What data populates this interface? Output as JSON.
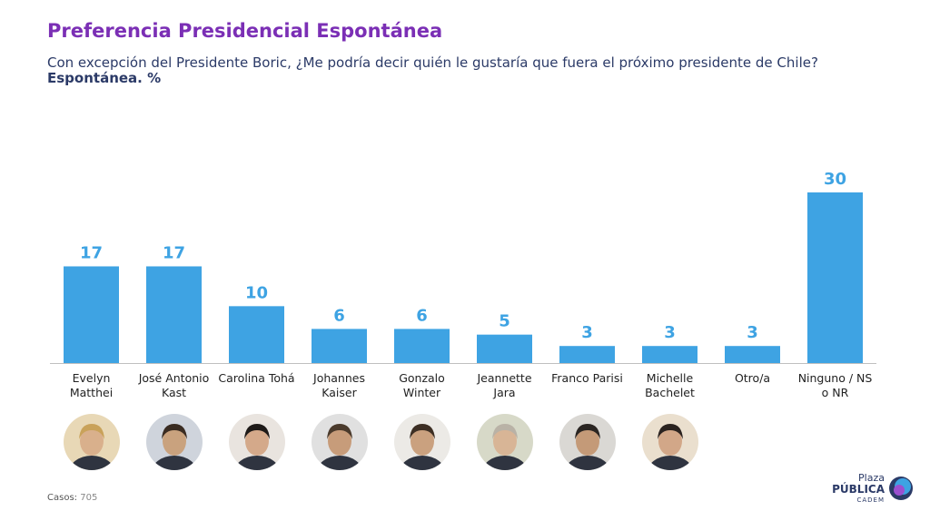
{
  "header": {
    "title": "Preferencia Presidencial Espontánea",
    "subtitle": "Con excepción del Presidente Boric, ¿Me podría decir quién le gustaría que fuera el próximo presidente de Chile?",
    "unit": "Espontánea. %"
  },
  "colors": {
    "bar": "#3ea3e3",
    "value_label": "#3ea3e3",
    "title": "#7b2fb5",
    "text": "#2b3a67"
  },
  "chart_data": {
    "type": "bar",
    "title": "Preferencia Presidencial Espontánea",
    "ylabel": "Espontánea. %",
    "xlabel": "",
    "grid": false,
    "categories": [
      [
        "Evelyn",
        "Matthei"
      ],
      [
        "José Antonio",
        "Kast"
      ],
      [
        "Carolina Tohá"
      ],
      [
        "Johannes",
        "Kaiser"
      ],
      [
        "Gonzalo",
        "Winter"
      ],
      [
        "Jeannette",
        "Jara"
      ],
      [
        "Franco Parisi"
      ],
      [
        "Michelle",
        "Bachelet"
      ],
      [
        "Otro/a"
      ],
      [
        "Ninguno / NS",
        "o NR"
      ]
    ],
    "values": [
      17,
      17,
      10,
      6,
      6,
      5,
      3,
      3,
      3,
      30
    ],
    "ylim": [
      0,
      30
    ]
  },
  "footer": {
    "casos_label": "Casos:",
    "casos_value": "705",
    "logo_line1": "Plaza",
    "logo_line2": "PÚBLICA",
    "logo_line3": "CADEM"
  }
}
